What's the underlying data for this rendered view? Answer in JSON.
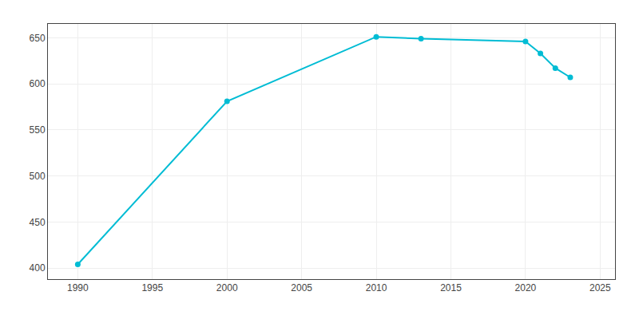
{
  "chart_data": {
    "type": "line",
    "x": [
      1990,
      2000,
      2010,
      2013,
      2020,
      2021,
      2022,
      2023
    ],
    "values": [
      404,
      581,
      651,
      649,
      646,
      633,
      617,
      607
    ],
    "color": "#00bcd4",
    "marker": "circle",
    "xlim": [
      1988,
      2026
    ],
    "xticks": [
      1990,
      1995,
      2000,
      2005,
      2010,
      2015,
      2020,
      2025
    ],
    "ylim": [
      388,
      665
    ],
    "yticks": [
      400,
      450,
      500,
      550,
      600,
      650
    ],
    "grid": true
  }
}
